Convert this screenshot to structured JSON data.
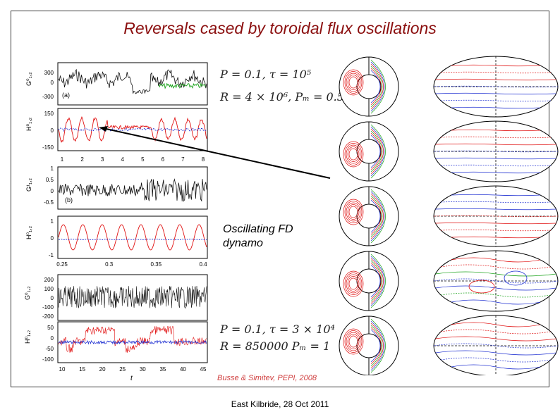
{
  "slide": {
    "title": "Reversals cased by toroidal flux oscillations",
    "equation1_line1": "P = 0.1,  τ = 10⁵",
    "equation1_line2": "R = 4 × 10⁶,  Pₘ = 0.5",
    "equation2_line1": "P = 0.1,  τ = 3 × 10⁴",
    "equation2_line2": "R = 850000   Pₘ = 1",
    "oscillating_label_1": "Oscillating FD",
    "oscillating_label_2": "dynamo",
    "citation": "Busse & Simitev, PEPI, 2008",
    "footer": "East Kilbride, 28 Oct 2011"
  },
  "panels": {
    "a_g": {
      "ticks": [
        "300",
        "0",
        "-300"
      ],
      "letter": "(a)"
    },
    "a_h": {
      "ticks": [
        "150",
        "0",
        "-150"
      ],
      "xticks": [
        "1",
        "2",
        "3",
        "4",
        "5",
        "6",
        "7",
        "8"
      ]
    },
    "b_g": {
      "ticks": [
        "1",
        "0.5",
        "0",
        "-0.5"
      ],
      "letter": "(b)"
    },
    "b_h": {
      "ticks": [
        "1",
        "0",
        "-1"
      ],
      "xticks": [
        "0.25",
        "0.3",
        "0.35",
        "0.4"
      ]
    },
    "c_g": {
      "ticks": [
        "200",
        "100",
        "0",
        "-100",
        "-200"
      ]
    },
    "c_h": {
      "ticks": [
        "50",
        "0",
        "-50",
        "-100"
      ],
      "xticks": [
        "10",
        "15",
        "20",
        "25",
        "30",
        "35",
        "40",
        "45"
      ]
    },
    "xaxis_label": "t"
  },
  "colors": {
    "title": "#8b0f0f",
    "red": "#e01010",
    "blue": "#1a2bd0",
    "green": "#14a014",
    "black": "#111111"
  }
}
